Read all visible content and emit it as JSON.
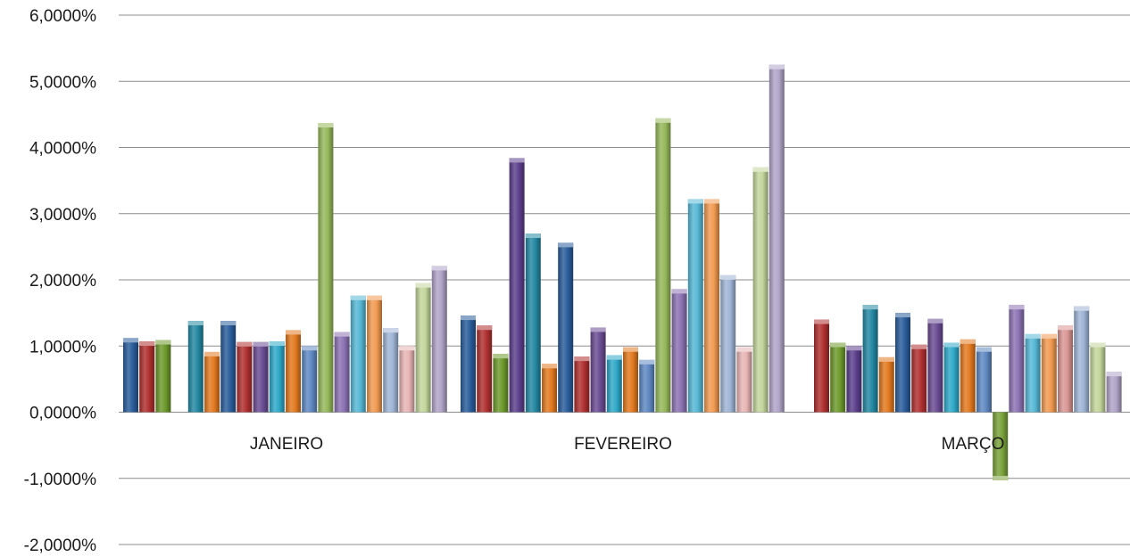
{
  "chart_data": {
    "type": "bar",
    "title": "",
    "xlabel": "",
    "ylabel": "",
    "ylim": [
      -2,
      6
    ],
    "grid": true,
    "legend": "none",
    "y_ticks": [
      "-2,0000%",
      "-1,0000%",
      "0,0000%",
      "1,0000%",
      "2,0000%",
      "3,0000%",
      "4,0000%",
      "5,0000%",
      "6,0000%"
    ],
    "categories": [
      "JANEIRO",
      "FEVEREIRO",
      "MARÇO"
    ],
    "groups": [
      {
        "category": "JANEIRO",
        "values": [
          1.12,
          1.07,
          1.09,
          null,
          1.38,
          0.91,
          1.38,
          1.06,
          1.06,
          1.07,
          1.24,
          1.0,
          4.37,
          1.21,
          1.76,
          1.76,
          1.27,
          1.0,
          1.95,
          2.21
        ]
      },
      {
        "category": "FEVEREIRO",
        "values": [
          1.46,
          1.31,
          0.88,
          3.84,
          2.7,
          0.73,
          2.56,
          0.84,
          1.28,
          0.86,
          0.98,
          0.79,
          4.44,
          1.86,
          3.22,
          3.22,
          2.07,
          0.98,
          3.7,
          5.25
        ]
      },
      {
        "category": "MARÇO",
        "values": [
          1.4,
          1.05,
          1.0,
          1.62,
          0.83,
          1.5,
          1.02,
          1.41,
          1.05,
          1.1,
          0.98,
          -1.03,
          1.62,
          1.18,
          1.18,
          1.31,
          1.6,
          1.05,
          0.61
        ]
      }
    ],
    "bar_colors": {
      "JANEIRO": [
        "#2a5d9b",
        "#b03030",
        "#6d9a2c",
        null,
        "#2388a2",
        "#e3791f",
        "#2a5d9b",
        "#b03030",
        "#6a4c93",
        "#2ea8c8",
        "#e3791f",
        "#5f89c2",
        "#95b85a",
        "#8c72b3",
        "#56b8d6",
        "#f19a50",
        "#9fb5d6",
        "#e8b4b4",
        "#c3d69b",
        "#b1a4c8"
      ],
      "FEVEREIRO": [
        "#2a5d9b",
        "#b03030",
        "#6d9a2c",
        "#5c3f8c",
        "#2388a2",
        "#e3791f",
        "#2a5d9b",
        "#b03030",
        "#6a4c93",
        "#2ea8c8",
        "#e3791f",
        "#5f89c2",
        "#95b85a",
        "#8c72b3",
        "#56b8d6",
        "#f19a50",
        "#9fb5d6",
        "#e8b4b4",
        "#c3d69b",
        "#b1a4c8"
      ],
      "MARÇO": [
        "#b03030",
        "#6d9a2c",
        "#5c3f8c",
        "#2388a2",
        "#e3791f",
        "#2a5d9b",
        "#b03030",
        "#6a4c93",
        "#2ea8c8",
        "#e3791f",
        "#5f89c2",
        "#79a13a",
        "#8c72b3",
        "#56b8d6",
        "#f19a50",
        "#d99694",
        "#9fb5d6",
        "#c3d69b",
        "#b1a4c8"
      ]
    }
  }
}
